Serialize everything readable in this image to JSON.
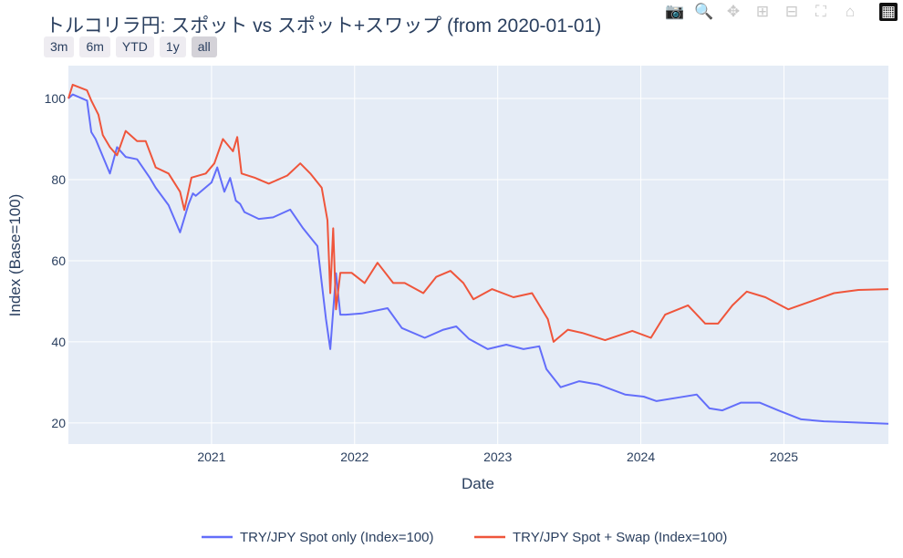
{
  "title": "トルコリラ円: スポット vs スポット+スワップ (from 2020-01-01)",
  "range_selector": [
    {
      "label": "3m"
    },
    {
      "label": "6m"
    },
    {
      "label": "YTD"
    },
    {
      "label": "1y"
    },
    {
      "label": "all",
      "active": true
    }
  ],
  "modebar": [
    {
      "icon": "camera-icon",
      "glyph": "📷"
    },
    {
      "icon": "zoom-icon",
      "glyph": "🔍"
    },
    {
      "icon": "pan-icon",
      "glyph": "✥"
    },
    {
      "icon": "zoom-in-icon",
      "glyph": "⊞"
    },
    {
      "icon": "zoom-out-icon",
      "glyph": "⊟"
    },
    {
      "icon": "autoscale-icon",
      "glyph": "⛶"
    },
    {
      "icon": "home-icon",
      "glyph": "⌂"
    },
    {
      "icon": "plotly-logo-icon",
      "glyph": "▦"
    }
  ],
  "chart_data": {
    "type": "line",
    "title": "トルコリラ円: スポット vs スポット+スワップ (from 2020-01-01)",
    "xlabel": "Date",
    "ylabel": "Index (Base=100)",
    "x_unit": "decimal year",
    "xlim": [
      2020.0,
      2025.73
    ],
    "ylim": [
      14.8,
      108.1
    ],
    "xticks": [
      {
        "v": 2021,
        "label": "2021"
      },
      {
        "v": 2022,
        "label": "2022"
      },
      {
        "v": 2023,
        "label": "2023"
      },
      {
        "v": 2024,
        "label": "2024"
      },
      {
        "v": 2025,
        "label": "2025"
      }
    ],
    "yticks": [
      {
        "v": 20,
        "label": "20"
      },
      {
        "v": 40,
        "label": "40"
      },
      {
        "v": 60,
        "label": "60"
      },
      {
        "v": 80,
        "label": "80"
      },
      {
        "v": 100,
        "label": "100"
      }
    ],
    "grid": true,
    "legend_position": "bottom-center",
    "plot_bg": "#e5ecf6",
    "series": [
      {
        "name": "TRY/JPY Spot only (Index=100)",
        "color": "#636efa",
        "x": [
          2020.0,
          2020.03,
          2020.13,
          2020.16,
          2020.19,
          2020.29,
          2020.34,
          2020.4,
          2020.48,
          2020.57,
          2020.61,
          2020.7,
          2020.78,
          2020.84,
          2020.87,
          2020.89,
          2021.0,
          2021.04,
          2021.09,
          2021.13,
          2021.17,
          2021.2,
          2021.23,
          2021.33,
          2021.43,
          2021.55,
          2021.64,
          2021.74,
          2021.77,
          2021.8,
          2021.83,
          2021.87,
          2021.9,
          2021.94,
          2022.05,
          2022.23,
          2022.33,
          2022.49,
          2022.62,
          2022.71,
          2022.8,
          2022.93,
          2023.06,
          2023.18,
          2023.29,
          2023.34,
          2023.44,
          2023.57,
          2023.7,
          2023.89,
          2024.02,
          2024.11,
          2024.27,
          2024.39,
          2024.48,
          2024.57,
          2024.7,
          2024.83,
          2024.96,
          2025.12,
          2025.28,
          2025.44,
          2025.73
        ],
        "y": [
          100,
          101,
          99.5,
          91.7,
          90,
          81.5,
          88,
          85.6,
          85,
          80.4,
          78,
          73.7,
          67,
          74,
          76.6,
          76,
          79.3,
          83,
          77,
          80.4,
          74.8,
          74,
          72,
          70.3,
          70.7,
          72.6,
          68,
          63.6,
          54.6,
          45.6,
          38.2,
          56.9,
          46.7,
          46.7,
          47,
          48.3,
          43.4,
          41,
          43,
          43.8,
          40.7,
          38.2,
          39.3,
          38.2,
          38.9,
          33.3,
          28.8,
          30.3,
          29.5,
          27,
          26.5,
          25.4,
          26.3,
          27,
          23.6,
          23.1,
          25,
          25,
          23.1,
          20.9,
          20.4,
          20.2,
          19.8
        ]
      },
      {
        "name": "TRY/JPY Spot + Swap (Index=100)",
        "color": "#ef553b",
        "x": [
          2020.0,
          2020.03,
          2020.13,
          2020.16,
          2020.21,
          2020.24,
          2020.29,
          2020.34,
          2020.4,
          2020.48,
          2020.54,
          2020.61,
          2020.7,
          2020.78,
          2020.81,
          2020.86,
          2020.96,
          2021.02,
          2021.08,
          2021.15,
          2021.18,
          2021.21,
          2021.3,
          2021.4,
          2021.53,
          2021.62,
          2021.69,
          2021.77,
          2021.81,
          2021.83,
          2021.85,
          2021.87,
          2021.9,
          2021.98,
          2022.07,
          2022.16,
          2022.27,
          2022.35,
          2022.48,
          2022.57,
          2022.67,
          2022.76,
          2022.83,
          2022.96,
          2023.11,
          2023.24,
          2023.35,
          2023.39,
          2023.49,
          2023.59,
          2023.75,
          2023.94,
          2024.07,
          2024.17,
          2024.33,
          2024.45,
          2024.54,
          2024.64,
          2024.74,
          2024.87,
          2025.03,
          2025.19,
          2025.35,
          2025.52,
          2025.73
        ],
        "y": [
          100,
          103.4,
          102,
          99.5,
          96,
          91,
          88,
          86,
          92,
          89.5,
          89.5,
          83,
          81.5,
          77,
          72.5,
          80.5,
          81.5,
          84,
          90,
          87,
          90.5,
          81.5,
          80.5,
          79,
          81,
          84,
          81.5,
          78,
          70,
          52,
          68,
          48,
          57,
          57,
          54.5,
          59.5,
          54.5,
          54.5,
          52,
          56,
          57.5,
          54.5,
          50.5,
          53,
          51,
          52,
          45.6,
          40,
          43,
          42.2,
          40.4,
          42.7,
          41,
          46.7,
          49,
          44.5,
          44.5,
          49,
          52.4,
          51,
          48,
          50,
          52,
          52.8,
          53
        ]
      }
    ]
  }
}
